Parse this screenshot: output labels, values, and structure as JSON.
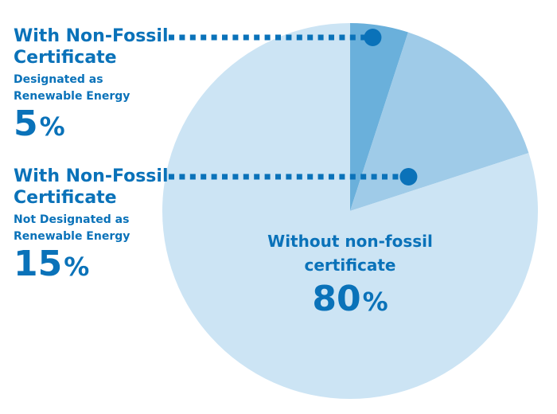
{
  "chart_data": {
    "type": "pie",
    "slices": [
      {
        "title": "With Non-Fossil Certificate",
        "subtitle": "Designated as Renewable Energy",
        "value": 5,
        "percent_label": "5",
        "color": "#6ab0db"
      },
      {
        "title": "With Non-Fossil Certificate",
        "subtitle": "Not Designated as Renewable Energy",
        "value": 15,
        "percent_label": "15",
        "color": "#9fcbe8"
      },
      {
        "title": "Without non-fossil certificate",
        "subtitle": "",
        "value": 80,
        "percent_label": "80",
        "color": "#cce4f4"
      }
    ],
    "percent_sign": "%",
    "start_angle_deg": 0,
    "direction": "clockwise",
    "leader_color": "#0a72b9",
    "label_color": "#0a72b9"
  }
}
